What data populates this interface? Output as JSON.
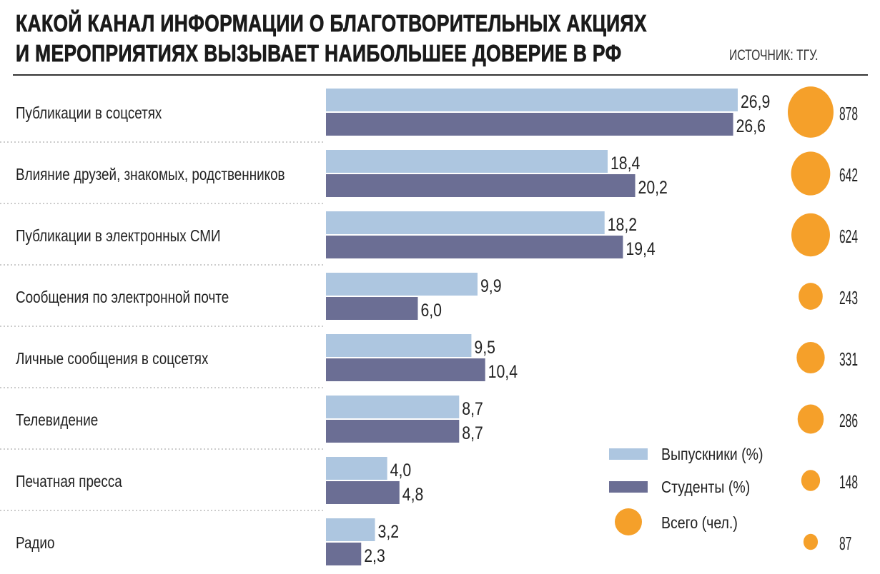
{
  "chart_data": {
    "type": "bar",
    "title_line1": "КАКОЙ КАНАЛ ИНФОРМАЦИИ О БЛАГОТВОРИТЕЛЬНЫХ АКЦИЯХ",
    "title_line2": "И МЕРОПРИЯТИЯХ ВЫЗЫВАЕТ НАИБОЛЬШЕЕ ДОВЕРИЕ В РФ",
    "source": "ИСТОЧНИК: ТГУ.",
    "orientation": "horizontal",
    "categories": [
      "Публикации в соцсетях",
      "Влияние друзей, знакомых, родственников",
      "Публикации в электронных СМИ",
      "Сообщения по электронной почте",
      "Личные сообщения в соцсетях",
      "Телевидение",
      "Печатная пресса",
      "Радио"
    ],
    "series": [
      {
        "name": "Выпускники (%)",
        "color": "#adc6e0",
        "values": [
          26.9,
          18.4,
          18.2,
          9.9,
          9.5,
          8.7,
          4.0,
          3.2
        ],
        "labels": [
          "26,9",
          "18,4",
          "18,2",
          "9,9",
          "9,5",
          "8,7",
          "4,0",
          "3,2"
        ]
      },
      {
        "name": "Студенты (%)",
        "color": "#6b6e94",
        "values": [
          26.6,
          20.2,
          19.4,
          6.0,
          10.4,
          8.7,
          4.8,
          2.3
        ],
        "labels": [
          "26,6",
          "20,2",
          "19,4",
          "6,0",
          "10,4",
          "8,7",
          "4,8",
          "2,3"
        ]
      },
      {
        "name": "Всего (чел.)",
        "color": "#f5a02a",
        "type": "bubble",
        "values": [
          878,
          642,
          624,
          243,
          331,
          286,
          148,
          87
        ],
        "labels": [
          "878",
          "642",
          "624",
          "243",
          "331",
          "286",
          "148",
          "87"
        ]
      }
    ],
    "xlim": [
      0,
      27
    ],
    "grid": false,
    "legend": "bottom-right"
  }
}
